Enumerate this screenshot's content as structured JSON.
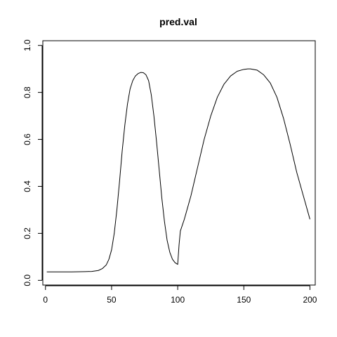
{
  "chart_data": {
    "type": "line",
    "title": "pred.val",
    "xlabel": "",
    "ylabel": "",
    "xlim": [
      -2,
      204
    ],
    "ylim": [
      -0.02,
      1.02
    ],
    "x_ticks": [
      0,
      50,
      100,
      150,
      200
    ],
    "y_ticks": [
      0.0,
      0.2,
      0.4,
      0.6,
      0.8,
      1.0
    ],
    "x_tick_labels": [
      "0",
      "50",
      "100",
      "150",
      "200"
    ],
    "y_tick_labels": [
      "0.0",
      "0.2",
      "0.4",
      "0.6",
      "0.8",
      "1.0"
    ],
    "grid": false,
    "legend": "none",
    "line_color": "#000000",
    "series": [
      {
        "x": [
          1,
          10,
          20,
          30,
          35,
          40,
          43,
          46,
          48,
          50,
          52,
          54,
          56,
          58,
          60,
          62,
          64,
          66,
          68,
          70,
          72,
          74,
          76,
          78,
          80,
          82,
          84,
          86,
          88,
          90,
          92,
          94,
          96,
          98,
          100,
          101,
          102,
          105,
          110,
          115,
          120,
          125,
          130,
          135,
          140,
          145,
          150,
          153,
          155,
          160,
          165,
          170,
          175,
          180,
          185,
          190,
          195,
          200
        ],
        "y": [
          0.036,
          0.036,
          0.036,
          0.037,
          0.038,
          0.042,
          0.05,
          0.066,
          0.09,
          0.13,
          0.2,
          0.3,
          0.42,
          0.55,
          0.66,
          0.75,
          0.815,
          0.85,
          0.87,
          0.88,
          0.885,
          0.884,
          0.875,
          0.85,
          0.79,
          0.7,
          0.59,
          0.47,
          0.35,
          0.25,
          0.17,
          0.12,
          0.09,
          0.075,
          0.068,
          0.15,
          0.21,
          0.26,
          0.36,
          0.48,
          0.6,
          0.7,
          0.78,
          0.835,
          0.87,
          0.89,
          0.898,
          0.9,
          0.9,
          0.895,
          0.875,
          0.84,
          0.78,
          0.69,
          0.58,
          0.46,
          0.36,
          0.26
        ]
      }
    ]
  }
}
